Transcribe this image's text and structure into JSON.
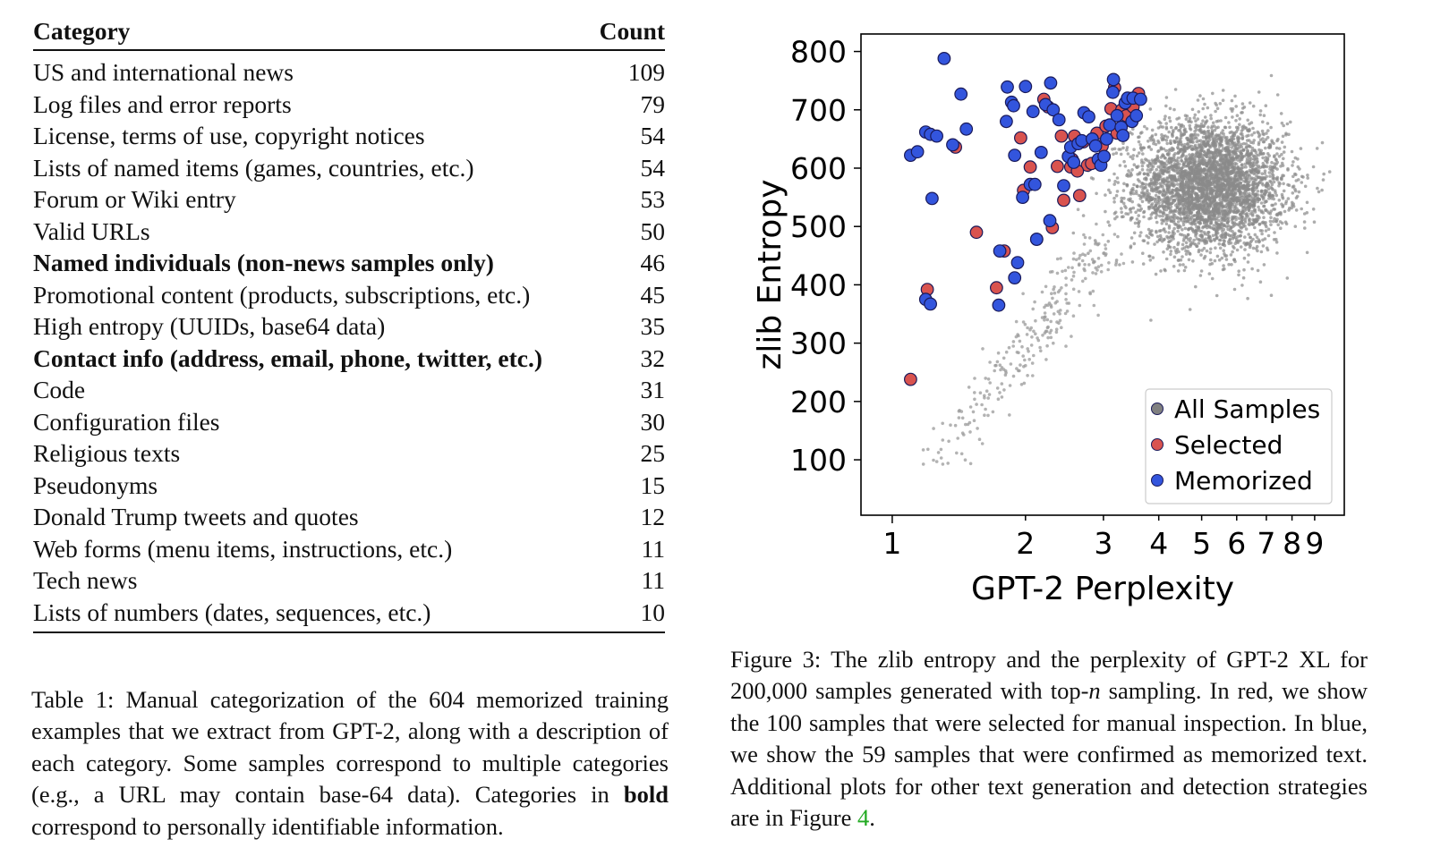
{
  "table": {
    "header": {
      "category": "Category",
      "count": "Count"
    },
    "rows": [
      {
        "category": "US and international news",
        "count": "109",
        "bold": false
      },
      {
        "category": "Log files and error reports",
        "count": "79",
        "bold": false
      },
      {
        "category": "License, terms of use, copyright notices",
        "count": "54",
        "bold": false
      },
      {
        "category": "Lists of named items (games, countries, etc.)",
        "count": "54",
        "bold": false
      },
      {
        "category": "Forum or Wiki entry",
        "count": "53",
        "bold": false
      },
      {
        "category": "Valid URLs",
        "count": "50",
        "bold": false
      },
      {
        "category": "Named individuals (non-news samples only)",
        "count": "46",
        "bold": true
      },
      {
        "category": "Promotional content (products, subscriptions, etc.)",
        "count": "45",
        "bold": false
      },
      {
        "category": "High entropy (UUIDs, base64 data)",
        "count": "35",
        "bold": false
      },
      {
        "category": "Contact info (address, email, phone, twitter, etc.)",
        "count": "32",
        "bold": true
      },
      {
        "category": "Code",
        "count": "31",
        "bold": false
      },
      {
        "category": "Configuration files",
        "count": "30",
        "bold": false
      },
      {
        "category": "Religious texts",
        "count": "25",
        "bold": false
      },
      {
        "category": "Pseudonyms",
        "count": "15",
        "bold": false
      },
      {
        "category": "Donald Trump tweets and quotes",
        "count": "12",
        "bold": false
      },
      {
        "category": "Web forms (menu items, instructions, etc.)",
        "count": "11",
        "bold": false
      },
      {
        "category": "Tech news",
        "count": "11",
        "bold": false
      },
      {
        "category": "Lists of numbers (dates, sequences, etc.)",
        "count": "10",
        "bold": false
      }
    ]
  },
  "table_caption": {
    "part1": "Table 1: Manual categorization of the 604 memorized training examples that we extract from GPT-2, along with a description of each category. Some samples correspond to multiple categories (e.g., a URL may contain base-64 data). Categories in ",
    "bold": "bold",
    "part2": " correspond to personally identifiable information."
  },
  "figure_caption": {
    "part1": "Figure 3: The zlib entropy and the perplexity of GPT-2 XL for 200,000 samples generated with top-",
    "italic": "n",
    "part2": " sampling. In red, we show the 100 samples that were selected for manual inspection. In blue, we show the 59 samples that were confirmed as memorized text. Additional plots for other text generation and detection strategies are in Figure ",
    "ref": "4",
    "part3": "."
  },
  "chart_data": {
    "type": "scatter",
    "xlabel": "GPT-2 Perplexity",
    "ylabel": "zlib Entropy",
    "xscale": "log",
    "xlim": [
      0.85,
      10.5
    ],
    "ylim": [
      5,
      830
    ],
    "x_ticks": [
      1,
      2,
      3,
      4,
      5,
      6,
      7,
      8,
      9
    ],
    "x_tick_labels": [
      "1",
      "2",
      "3",
      "4",
      "5",
      "6",
      "7",
      "8",
      "9"
    ],
    "y_ticks": [
      100,
      200,
      300,
      400,
      500,
      600,
      700,
      800
    ],
    "y_tick_labels": [
      "100",
      "200",
      "300",
      "400",
      "500",
      "600",
      "700",
      "800"
    ],
    "grid": false,
    "legend_position": "bottom-right",
    "legend": [
      {
        "label": "All Samples",
        "color": "#808080"
      },
      {
        "label": "Selected",
        "color": "#d9534f"
      },
      {
        "label": "Memorized",
        "color": "#3355dd"
      }
    ],
    "all_samples_cloud": {
      "center_perplexity": 5.2,
      "center_entropy": 570,
      "tail_from": [
        1.2,
        70
      ],
      "tail_to": [
        3.0,
        480
      ]
    },
    "series": [
      {
        "name": "Selected",
        "color": "#d9534f",
        "points": [
          [
            1.1,
            238
          ],
          [
            1.2,
            392
          ],
          [
            1.39,
            636
          ],
          [
            1.55,
            490
          ],
          [
            1.72,
            395
          ],
          [
            1.79,
            458
          ],
          [
            1.95,
            652
          ],
          [
            1.98,
            562
          ],
          [
            2.05,
            602
          ],
          [
            2.12,
            478
          ],
          [
            2.2,
            718
          ],
          [
            2.3,
            498
          ],
          [
            2.36,
            603
          ],
          [
            2.41,
            655
          ],
          [
            2.44,
            545
          ],
          [
            2.53,
            602
          ],
          [
            2.55,
            615
          ],
          [
            2.58,
            655
          ],
          [
            2.65,
            553
          ],
          [
            2.7,
            645
          ],
          [
            2.76,
            605
          ],
          [
            2.82,
            608
          ],
          [
            2.9,
            660
          ],
          [
            2.98,
            638
          ],
          [
            3.04,
            672
          ],
          [
            3.12,
            702
          ],
          [
            3.18,
            738
          ],
          [
            3.3,
            700
          ],
          [
            3.38,
            690
          ],
          [
            3.5,
            705
          ],
          [
            3.6,
            728
          ],
          [
            2.25,
            705
          ],
          [
            2.62,
            595
          ],
          [
            3.22,
            660
          ]
        ]
      },
      {
        "name": "Memorized",
        "color": "#3355dd",
        "points": [
          [
            1.1,
            622
          ],
          [
            1.14,
            628
          ],
          [
            1.19,
            662
          ],
          [
            1.22,
            658
          ],
          [
            1.26,
            655
          ],
          [
            1.19,
            375
          ],
          [
            1.22,
            367
          ],
          [
            1.23,
            548
          ],
          [
            1.31,
            788
          ],
          [
            1.37,
            640
          ],
          [
            1.43,
            727
          ],
          [
            1.47,
            667
          ],
          [
            1.74,
            365
          ],
          [
            1.75,
            458
          ],
          [
            1.81,
            680
          ],
          [
            1.82,
            739
          ],
          [
            1.86,
            713
          ],
          [
            1.88,
            707
          ],
          [
            1.89,
            412
          ],
          [
            1.89,
            622
          ],
          [
            1.92,
            438
          ],
          [
            1.97,
            550
          ],
          [
            2.0,
            740
          ],
          [
            2.05,
            572
          ],
          [
            2.08,
            697
          ],
          [
            2.1,
            572
          ],
          [
            2.12,
            478
          ],
          [
            2.17,
            627
          ],
          [
            2.22,
            709
          ],
          [
            2.27,
            510
          ],
          [
            2.28,
            746
          ],
          [
            2.31,
            700
          ],
          [
            2.38,
            683
          ],
          [
            2.44,
            570
          ],
          [
            2.5,
            620
          ],
          [
            2.53,
            636
          ],
          [
            2.57,
            610
          ],
          [
            2.63,
            642
          ],
          [
            2.68,
            647
          ],
          [
            2.71,
            695
          ],
          [
            2.78,
            688
          ],
          [
            2.83,
            650
          ],
          [
            2.88,
            638
          ],
          [
            2.92,
            615
          ],
          [
            2.96,
            605
          ],
          [
            3.01,
            620
          ],
          [
            3.05,
            650
          ],
          [
            3.1,
            674
          ],
          [
            3.15,
            730
          ],
          [
            3.16,
            752
          ],
          [
            3.22,
            690
          ],
          [
            3.29,
            670
          ],
          [
            3.36,
            712
          ],
          [
            3.4,
            720
          ],
          [
            3.48,
            680
          ],
          [
            3.5,
            720
          ],
          [
            3.56,
            690
          ],
          [
            3.64,
            718
          ],
          [
            3.32,
            656
          ]
        ]
      }
    ]
  }
}
